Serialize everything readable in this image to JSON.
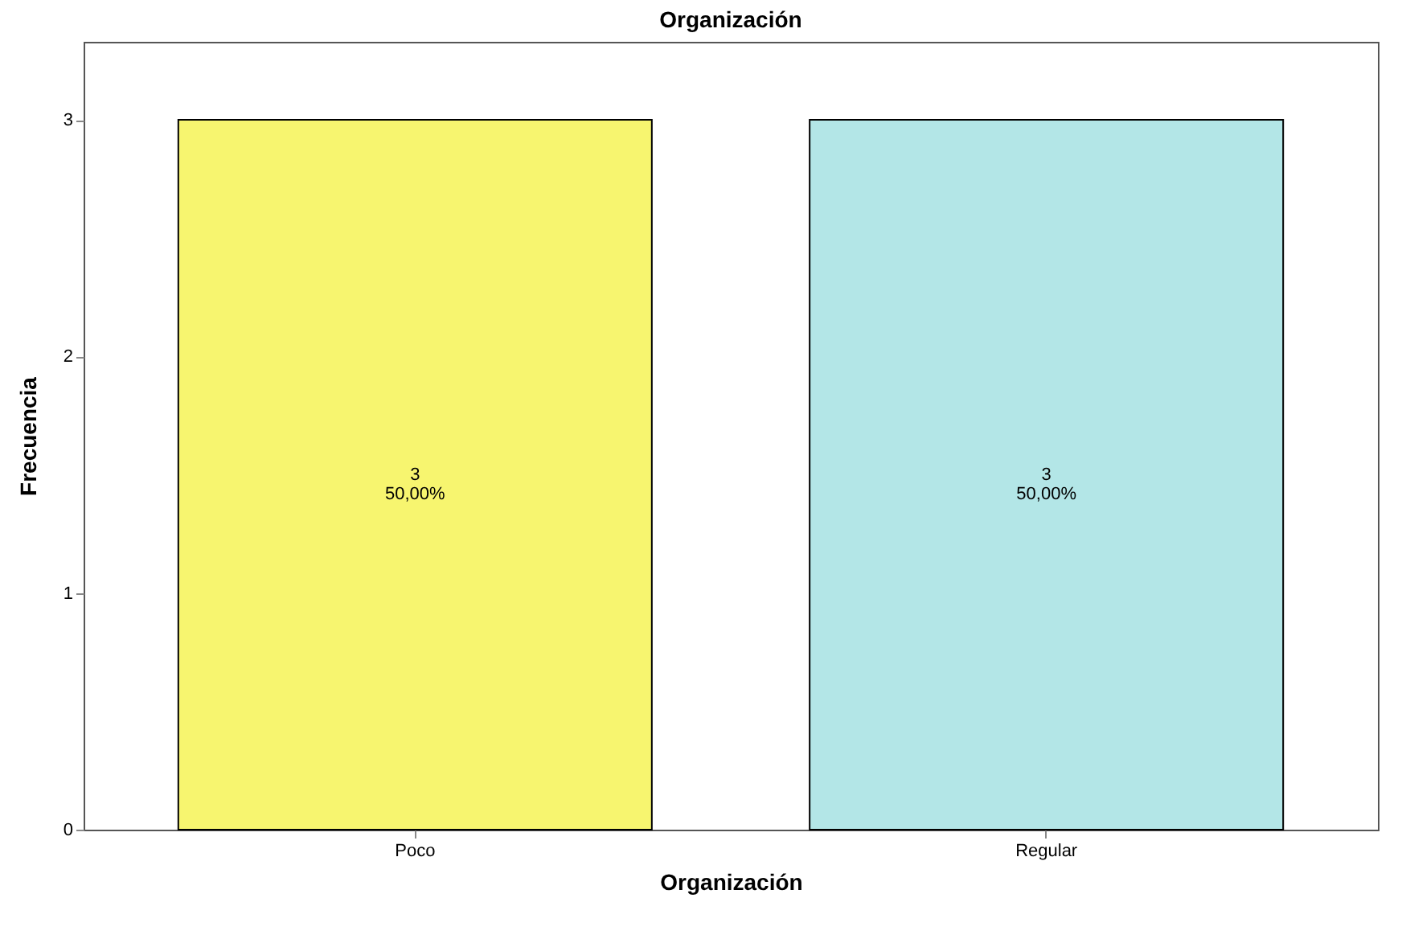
{
  "chart_data": {
    "type": "bar",
    "title": "Organización",
    "xlabel": "Organización",
    "ylabel": "Frecuencia",
    "categories": [
      "Poco",
      "Regular"
    ],
    "values": [
      3,
      3
    ],
    "colors": [
      "#f7f56f",
      "#b3e6e7"
    ],
    "value_labels": [
      "3\n50,00%",
      "3\n50,00%"
    ],
    "ylim": [
      0,
      3.33
    ],
    "yticks": [
      0,
      1,
      2,
      3
    ],
    "grid": false
  }
}
